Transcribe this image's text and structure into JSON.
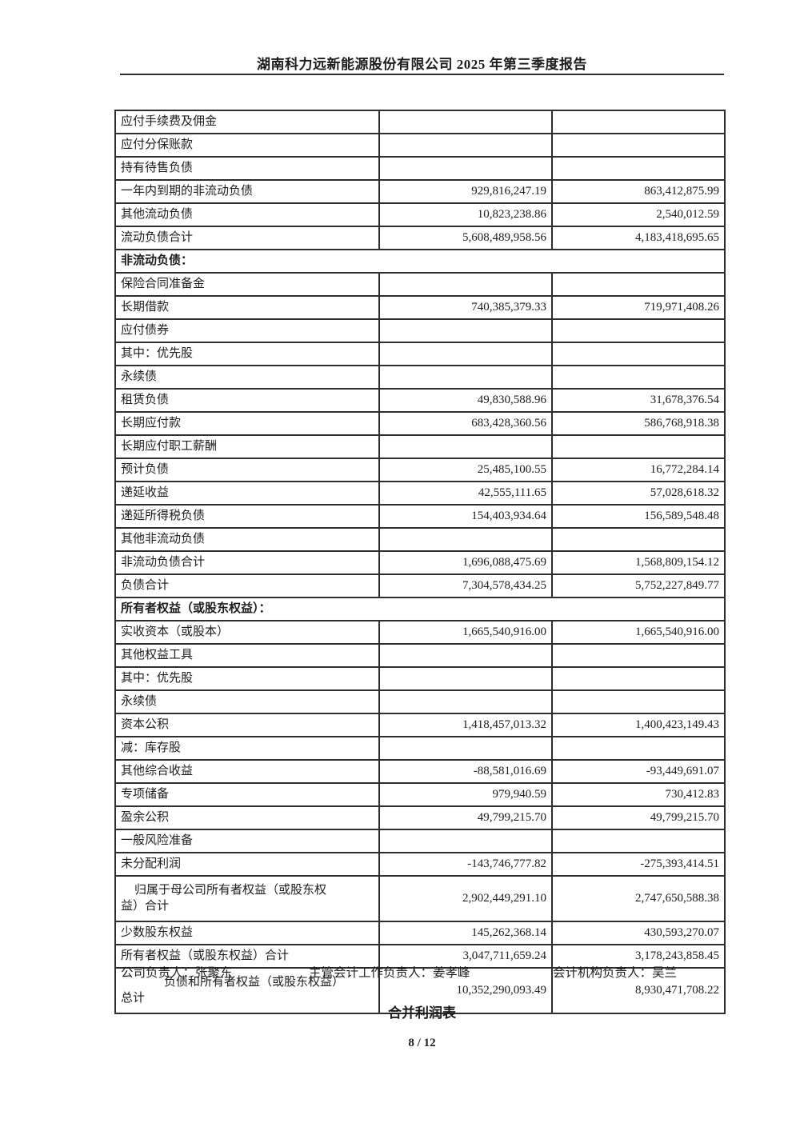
{
  "header": {
    "title": "湖南科力远新能源股份有限公司 2025 年第三季度报告"
  },
  "table": {
    "rows": [
      {
        "label": "应付手续费及佣金",
        "current": "",
        "prior": "",
        "indent": 1
      },
      {
        "label": "应付分保账款",
        "current": "",
        "prior": "",
        "indent": 1
      },
      {
        "label": "持有待售负债",
        "current": "",
        "prior": "",
        "indent": 1
      },
      {
        "label": "一年内到期的非流动负债",
        "current": "929,816,247.19",
        "prior": "863,412,875.99",
        "indent": 1
      },
      {
        "label": "其他流动负债",
        "current": "10,823,238.86",
        "prior": "2,540,012.59",
        "indent": 1
      },
      {
        "label": "流动负债合计",
        "current": "5,608,489,958.56",
        "prior": "4,183,418,695.65",
        "indent": 2
      },
      {
        "label": "非流动负债：",
        "section": true
      },
      {
        "label": "保险合同准备金",
        "current": "",
        "prior": "",
        "indent": 1
      },
      {
        "label": "长期借款",
        "current": "740,385,379.33",
        "prior": "719,971,408.26",
        "indent": 1
      },
      {
        "label": "应付债券",
        "current": "",
        "prior": "",
        "indent": 1
      },
      {
        "label": "其中：优先股",
        "current": "",
        "prior": "",
        "indent": 1
      },
      {
        "label": "永续债",
        "current": "",
        "prior": "",
        "indent": 1
      },
      {
        "label": "租赁负债",
        "current": "49,830,588.96",
        "prior": "31,678,376.54",
        "indent": 1
      },
      {
        "label": "长期应付款",
        "current": "683,428,360.56",
        "prior": "586,768,918.38",
        "indent": 1
      },
      {
        "label": "长期应付职工薪酬",
        "current": "",
        "prior": "",
        "indent": 1
      },
      {
        "label": "预计负债",
        "current": "25,485,100.55",
        "prior": "16,772,284.14",
        "indent": 1
      },
      {
        "label": "递延收益",
        "current": "42,555,111.65",
        "prior": "57,028,618.32",
        "indent": 1
      },
      {
        "label": "递延所得税负债",
        "current": "154,403,934.64",
        "prior": "156,589,548.48",
        "indent": 1
      },
      {
        "label": "其他非流动负债",
        "current": "",
        "prior": "",
        "indent": 1
      },
      {
        "label": "非流动负债合计",
        "current": "1,696,088,475.69",
        "prior": "1,568,809,154.12",
        "indent": 2
      },
      {
        "label": "负债合计",
        "current": "7,304,578,434.25",
        "prior": "5,752,227,849.77",
        "indent": 3
      },
      {
        "label": "所有者权益（或股东权益）：",
        "section": true
      },
      {
        "label": "实收资本（或股本）",
        "current": "1,665,540,916.00",
        "prior": "1,665,540,916.00",
        "indent": 1
      },
      {
        "label": "其他权益工具",
        "current": "",
        "prior": "",
        "indent": 1
      },
      {
        "label": "其中：优先股",
        "current": "",
        "prior": "",
        "indent": 1
      },
      {
        "label": "永续债",
        "current": "",
        "prior": "",
        "indent": 1
      },
      {
        "label": "资本公积",
        "current": "1,418,457,013.32",
        "prior": "1,400,423,149.43",
        "indent": 1
      },
      {
        "label": "减：库存股",
        "current": "",
        "prior": "",
        "indent": 1
      },
      {
        "label": "其他综合收益",
        "current": "-88,581,016.69",
        "prior": "-93,449,691.07",
        "indent": 1
      },
      {
        "label": "专项储备",
        "current": "979,940.59",
        "prior": "730,412.83",
        "indent": 1
      },
      {
        "label": "盈余公积",
        "current": "49,799,215.70",
        "prior": "49,799,215.70",
        "indent": 1
      },
      {
        "label": "一般风险准备",
        "current": "",
        "prior": "",
        "indent": 1
      },
      {
        "label": "未分配利润",
        "current": "-143,746,777.82",
        "prior": "-275,393,414.51",
        "indent": 1
      },
      {
        "label": "归属于母公司所有者权益（或股东权\n益）合计",
        "current": "2,902,449,291.10",
        "prior": "2,747,650,588.38",
        "hang": 1,
        "tall": true
      },
      {
        "label": "少数股东权益",
        "current": "145,262,368.14",
        "prior": "430,593,270.07",
        "indent": 1
      },
      {
        "label": "所有者权益（或股东权益）合计",
        "current": "3,047,711,659.24",
        "prior": "3,178,243,858.45",
        "indent": 2
      },
      {
        "label": "负债和所有者权益（或股东权益）\n总计",
        "current": "10,352,290,093.49",
        "prior": "8,930,471,708.22",
        "hang": 2,
        "tall": true
      }
    ]
  },
  "signatories": {
    "company_head": "公司负责人：张聚东",
    "accounting_work_head": "主管会计工作负责人：姜孝峰",
    "accounting_org_head": "会计机构负责人：吴兰"
  },
  "footer": {
    "next_table_title": "合并利润表",
    "page_number": "8 / 12"
  }
}
